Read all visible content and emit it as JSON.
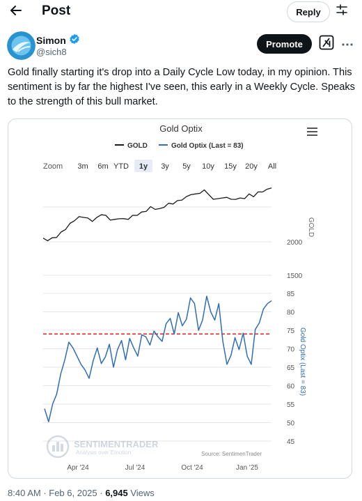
{
  "header": {
    "title": "Post",
    "reply_label": "Reply"
  },
  "author": {
    "name": "Simon",
    "handle": "@sich8",
    "verified": true
  },
  "actions": {
    "promote_label": "Promote"
  },
  "tweet": {
    "text": "Gold finally starting it's drop into a Daily Cycle Low today, in my opinion. This sentiment is by far the highest I've seen, this early in a Weekly Cycle. Speaks to the strength of this bull market."
  },
  "footer": {
    "timestamp": "8:40 AM · Feb 6, 2025 · ",
    "views_count": "6,945",
    "views_label": " Views"
  },
  "chart": {
    "title": "Gold Optix",
    "legend": [
      "GOLD",
      "Gold Optix (Last = 83)"
    ],
    "zoom_label": "Zoom",
    "zoom_options": [
      "3m",
      "6m",
      "YTD",
      "1y",
      "3y",
      "5y",
      "10y",
      "15y",
      "20y",
      "All"
    ],
    "zoom_selected": "1y",
    "top_axis_title": "GOLD",
    "bottom_axis_title": "Gold Optix (Last = 83)",
    "watermark": "SENTIMENTRADER",
    "watermark_tagline": "Analysis over Emotion",
    "source": "Source: SentimenTrader",
    "colors": {
      "gold": "#1a1a1a",
      "optix": "#2f6db5",
      "threshold": "#d6262b"
    }
  },
  "chart_data": {
    "type": "line",
    "x_labels": [
      "Apr '24",
      "Jul '24",
      "Oct '24",
      "Jan '25"
    ],
    "top_panel": {
      "series_name": "GOLD",
      "y_ticks": [
        2000,
        1500
      ],
      "values": [
        2040,
        2030,
        2045,
        2080,
        2130,
        2200,
        2260,
        2330,
        2360,
        2380,
        2340,
        2320,
        2350,
        2420,
        2380,
        2340,
        2320,
        2360,
        2330,
        2350,
        2380,
        2410,
        2430,
        2470,
        2510,
        2500,
        2480,
        2530,
        2560,
        2580,
        2600,
        2640,
        2660,
        2720,
        2700,
        2740,
        2760,
        2720,
        2620,
        2660,
        2640,
        2680,
        2620,
        2650,
        2640,
        2660,
        2700,
        2690,
        2730,
        2760,
        2770,
        2820
      ]
    },
    "bottom_panel": {
      "series_name": "Gold Optix (Last = 83)",
      "y_ticks": [
        85,
        80,
        75,
        70,
        65,
        60,
        55,
        50,
        45
      ],
      "threshold": 74,
      "values": [
        54,
        50,
        55,
        58,
        63,
        67,
        72,
        70,
        68,
        66,
        64,
        62,
        67,
        70,
        66,
        68,
        71,
        65,
        70,
        72,
        67,
        73,
        70,
        68,
        74,
        73,
        71,
        75,
        73,
        72,
        77,
        78,
        74,
        80,
        76,
        78,
        84,
        82,
        75,
        78,
        84,
        80,
        78,
        82,
        72,
        66,
        68,
        73,
        70,
        74,
        68,
        66,
        75,
        77,
        81,
        82,
        83
      ]
    }
  }
}
